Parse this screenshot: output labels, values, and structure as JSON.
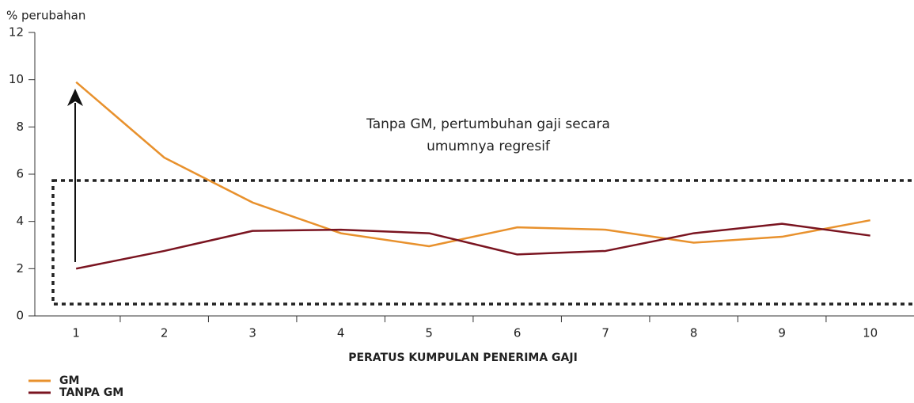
{
  "chart_data": {
    "type": "line",
    "y_axis_label": "% perubahan",
    "x_axis_label": "PERATUS KUMPULAN PENERIMA GAJI",
    "annotation": [
      "Tanpa GM, pertumbuhan gaji secara",
      "umumnya regresif"
    ],
    "categories": [
      "1",
      "2",
      "3",
      "4",
      "5",
      "6",
      "7",
      "8",
      "9",
      "10"
    ],
    "series": [
      {
        "name": "GM",
        "color": "#e8912d",
        "values": [
          9.9,
          6.7,
          4.8,
          3.5,
          2.95,
          3.75,
          3.65,
          3.1,
          3.35,
          4.05
        ]
      },
      {
        "name": "TANPA GM",
        "color": "#7a1420",
        "values": [
          2.0,
          2.75,
          3.6,
          3.65,
          3.5,
          2.6,
          2.75,
          3.5,
          3.9,
          3.4
        ]
      }
    ],
    "ylim": [
      0,
      12
    ],
    "yticks": [
      0,
      2,
      4,
      6,
      8,
      10,
      12
    ],
    "grid": false,
    "legend": "bottom-left"
  }
}
